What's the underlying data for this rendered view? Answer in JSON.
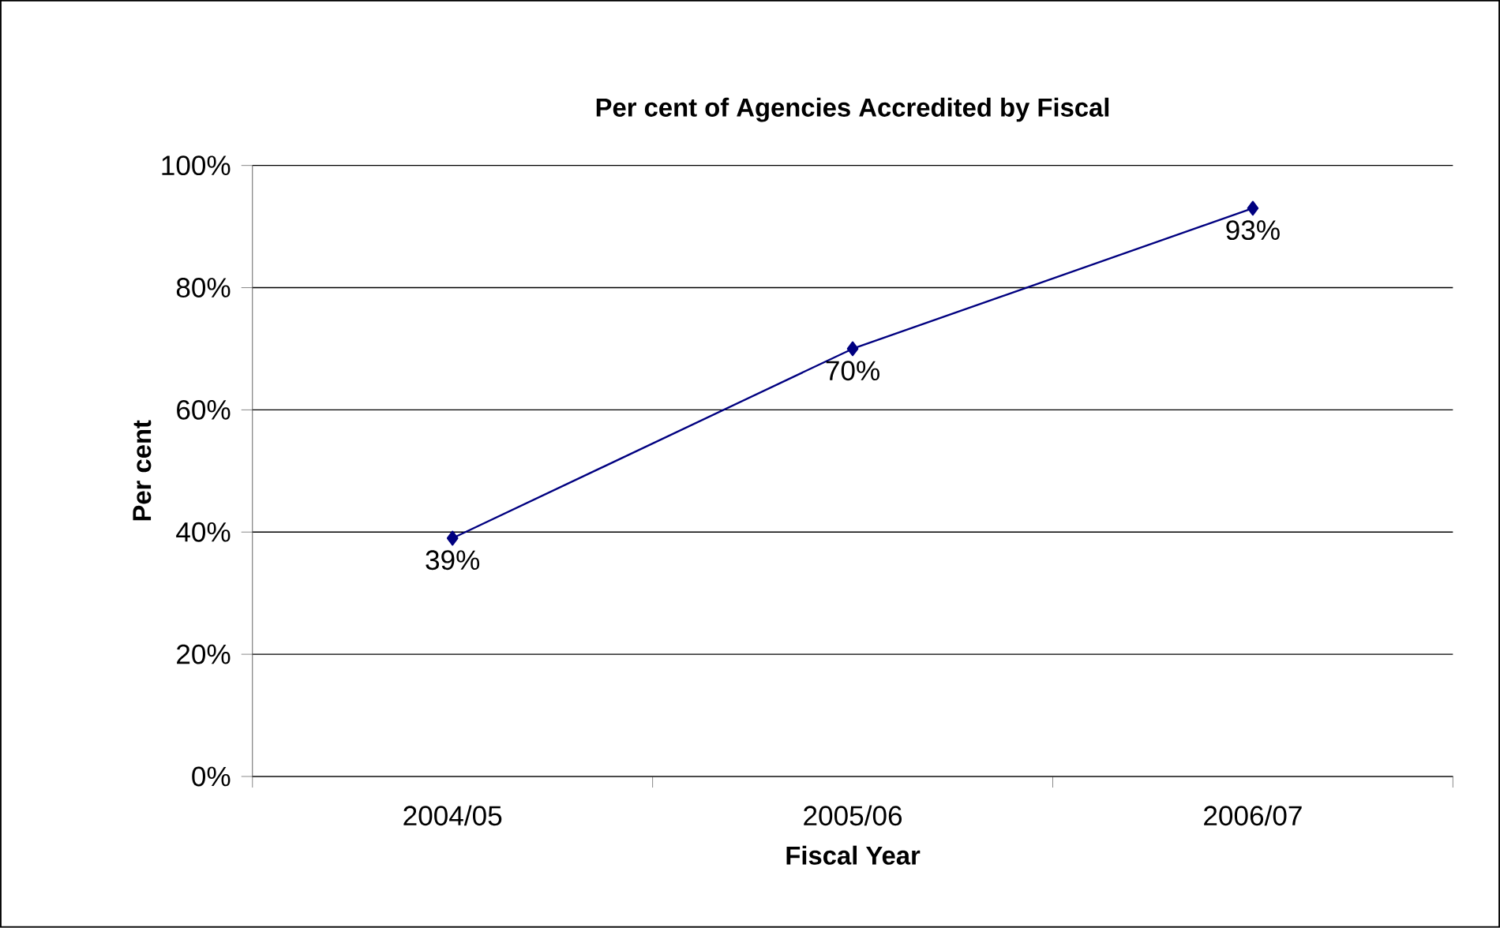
{
  "chart_data": {
    "type": "line",
    "title": "Per cent of Agencies Accredited by Fiscal",
    "xlabel": "Fiscal Year",
    "ylabel": "Per cent",
    "categories": [
      "2004/05",
      "2005/06",
      "2006/07"
    ],
    "values": [
      39,
      70,
      93
    ],
    "value_labels": [
      "39%",
      "70%",
      "93%"
    ],
    "color": "#000080",
    "marker": "diamond",
    "line_style": "solid",
    "grid": "y",
    "ylim": [
      0,
      100
    ],
    "yticks": [
      {
        "value": 0,
        "label": "0%"
      },
      {
        "value": 20,
        "label": "20%"
      },
      {
        "value": 40,
        "label": "40%"
      },
      {
        "value": 60,
        "label": "60%"
      },
      {
        "value": 80,
        "label": "80%"
      },
      {
        "value": 100,
        "label": "100%"
      }
    ]
  }
}
